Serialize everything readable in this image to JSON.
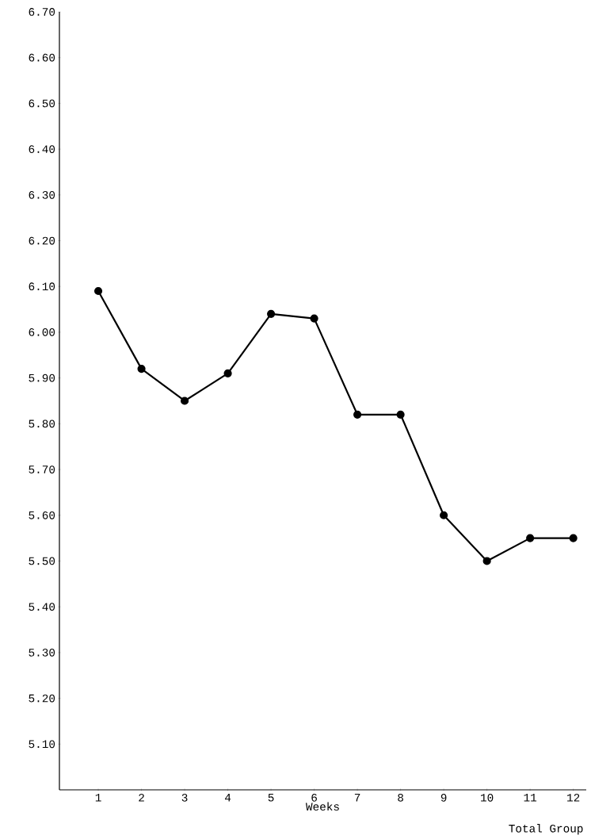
{
  "chart_data": {
    "type": "line",
    "xlabel": "Weeks",
    "categories": [
      "1",
      "2",
      "3",
      "4",
      "5",
      "6",
      "7",
      "8",
      "9",
      "10",
      "11",
      "12"
    ],
    "values": [
      6.09,
      5.92,
      5.85,
      5.91,
      6.04,
      6.03,
      5.82,
      5.82,
      5.6,
      5.5,
      5.55,
      5.55
    ],
    "color": "#000000",
    "marker": "circle",
    "line_style": "solid",
    "ylim": [
      5.0,
      6.7
    ],
    "yticks": [
      {
        "value": 5.1,
        "label": "5.10"
      },
      {
        "value": 5.2,
        "label": "5.20"
      },
      {
        "value": 5.3,
        "label": "5.30"
      },
      {
        "value": 5.4,
        "label": "5.40"
      },
      {
        "value": 5.5,
        "label": "5.50"
      },
      {
        "value": 5.6,
        "label": "5.60"
      },
      {
        "value": 5.7,
        "label": "5.70"
      },
      {
        "value": 5.8,
        "label": "5.80"
      },
      {
        "value": 5.9,
        "label": "5.90"
      },
      {
        "value": 6.0,
        "label": "6.00"
      },
      {
        "value": 6.1,
        "label": "6.10"
      },
      {
        "value": 6.2,
        "label": "6.20"
      },
      {
        "value": 6.3,
        "label": "6.30"
      },
      {
        "value": 6.4,
        "label": "6.40"
      },
      {
        "value": 6.5,
        "label": "6.50"
      },
      {
        "value": 6.6,
        "label": "6.60"
      },
      {
        "value": 6.7,
        "label": "6.70"
      }
    ],
    "annotations": [
      "Total Group"
    ]
  }
}
